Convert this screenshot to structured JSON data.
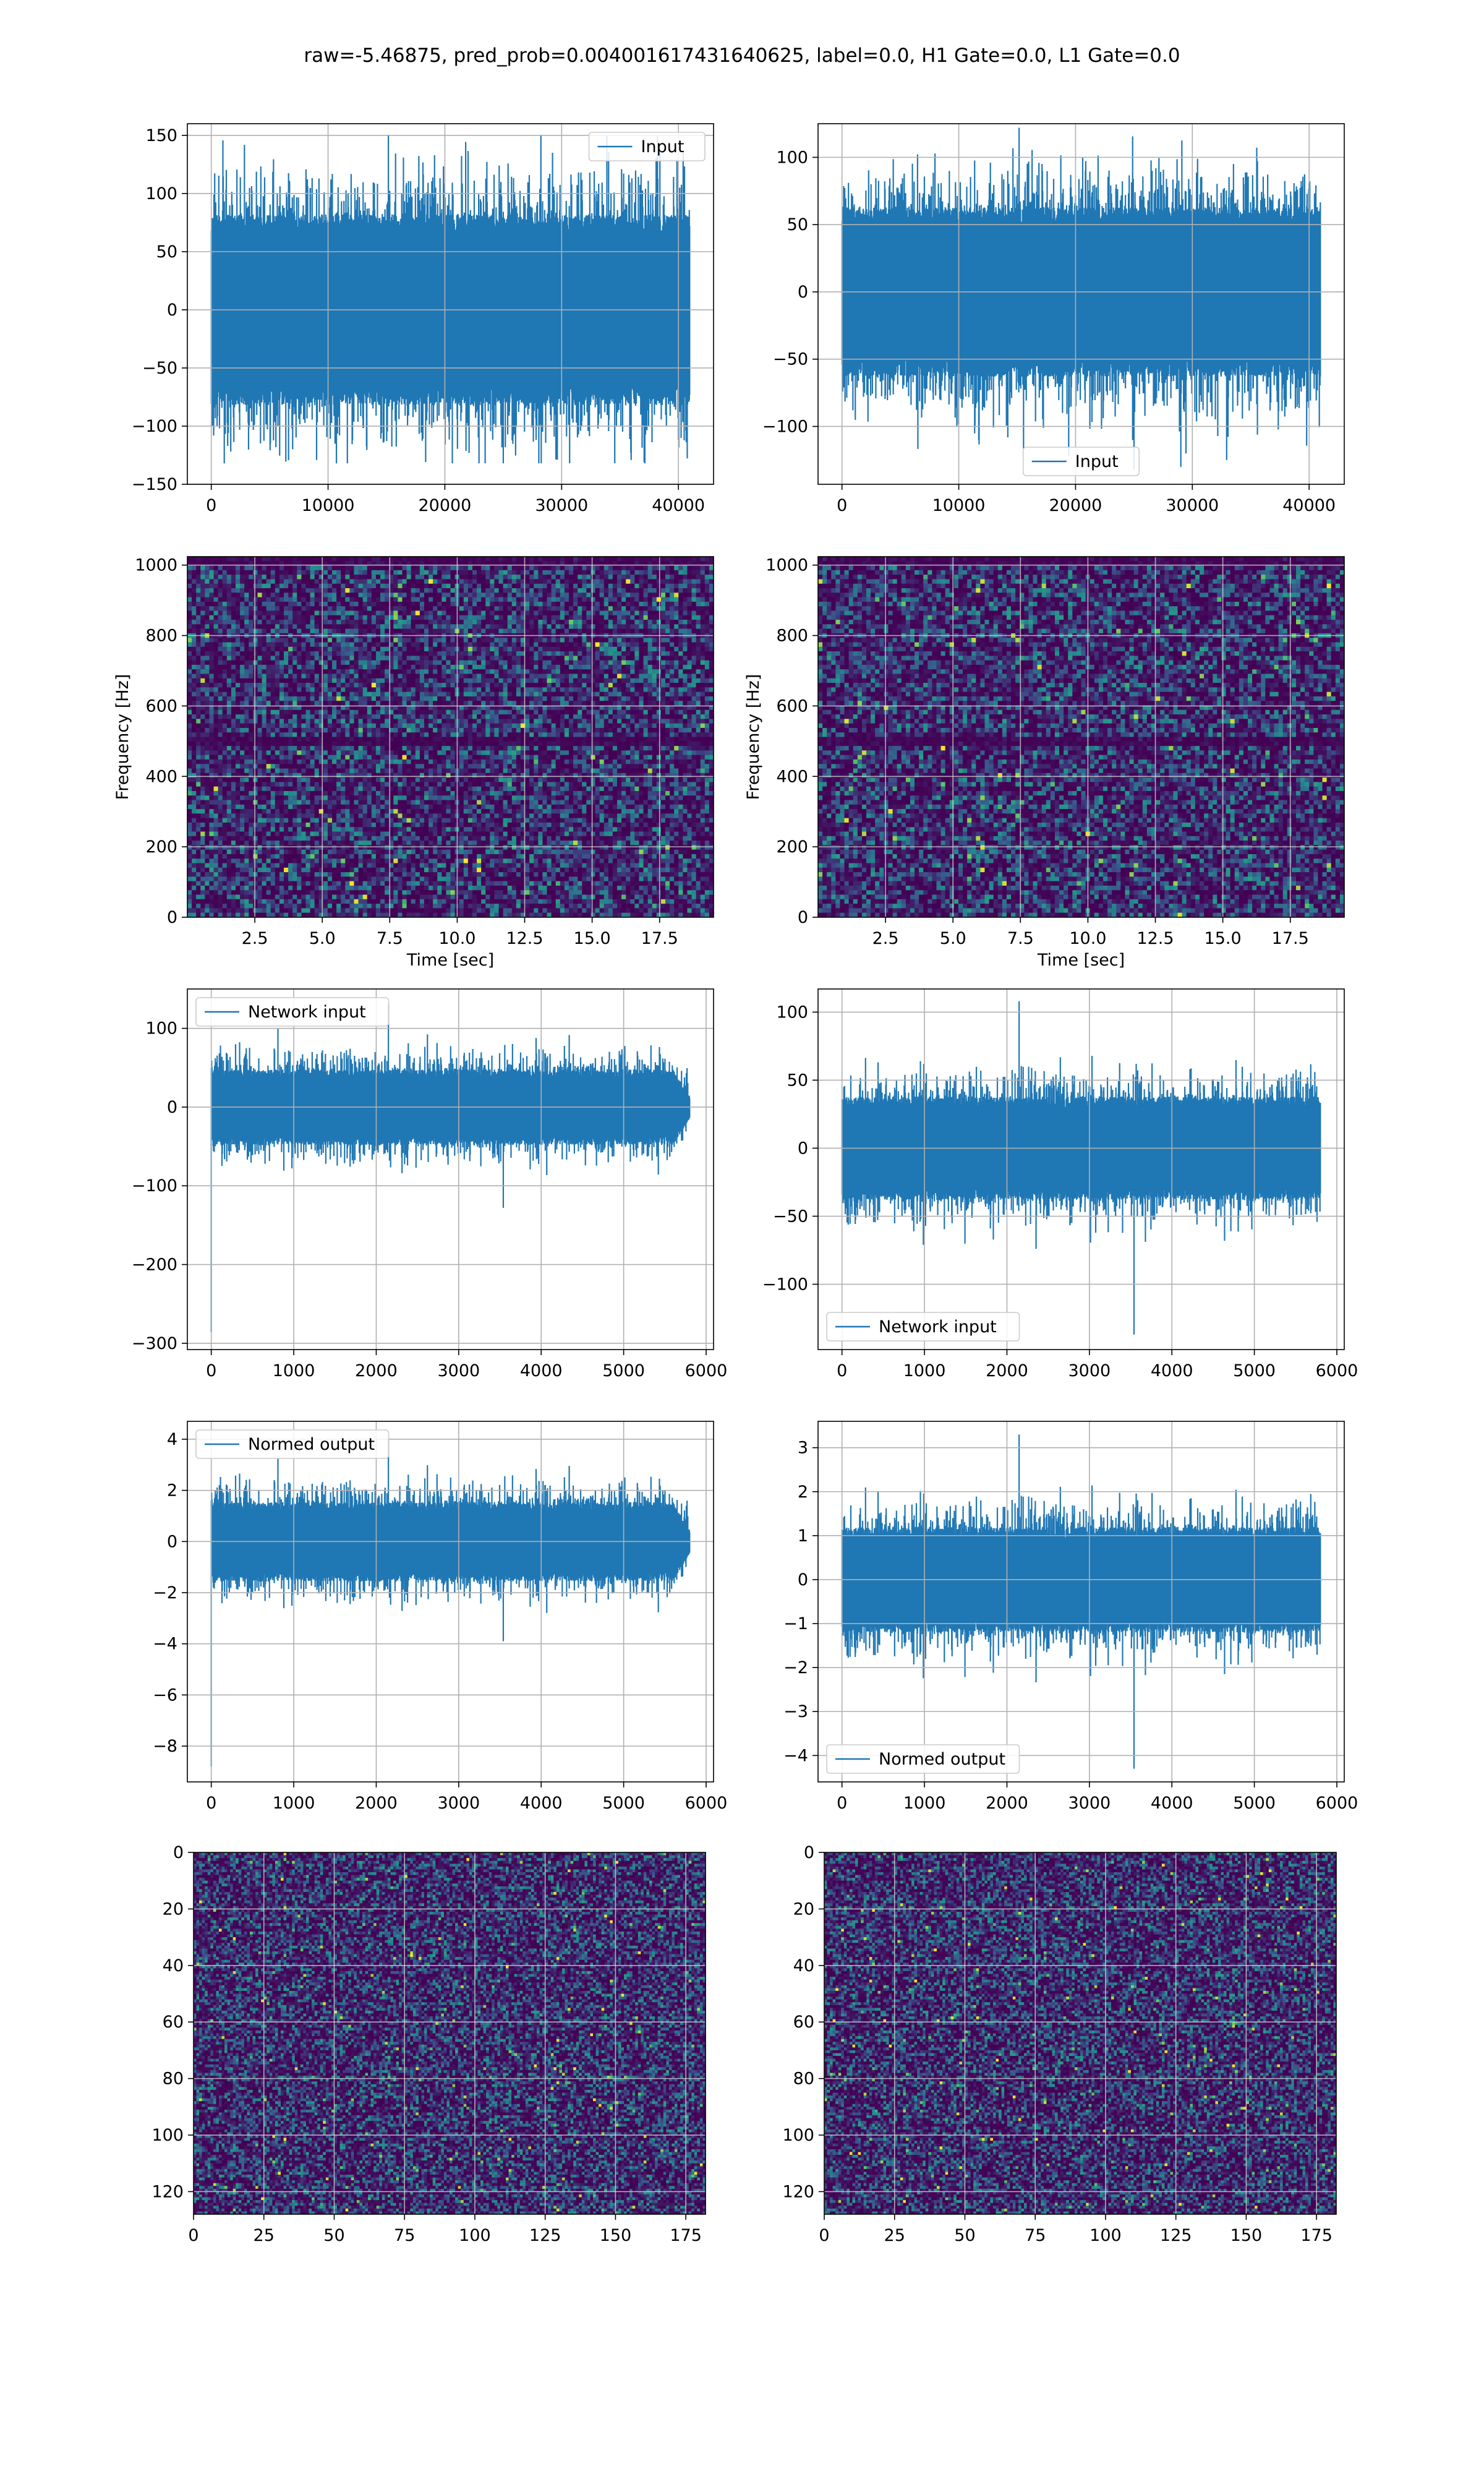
{
  "suptitle": "raw=-5.46875, pred_prob=0.004001617431640625, label=0.0, H1 Gate=0.0, L1 Gate=0.0",
  "colors": {
    "line": "#1f77b4",
    "grid": "#b0b0b0",
    "viridis": [
      "#440154",
      "#3b528b",
      "#21918c",
      "#5ec962",
      "#fde725"
    ]
  },
  "chart_data": [
    {
      "type": "line",
      "name": "row1-left",
      "legend": "Input",
      "legend_loc": "upper right",
      "xlim": [
        -2048,
        43008
      ],
      "ylim": [
        -150,
        160
      ],
      "xticks": [
        0,
        10000,
        20000,
        30000,
        40000
      ],
      "xtick_labels": [
        "0",
        "10000",
        "20000",
        "30000",
        "40000"
      ],
      "yticks": [
        -150,
        -100,
        -50,
        0,
        50,
        100,
        150
      ],
      "ytick_labels": [
        "−150",
        "−100",
        "−50",
        "0",
        "50",
        "100",
        "150"
      ],
      "x_range": [
        0,
        40960
      ],
      "n_points": 1400,
      "core": 82,
      "peak_max": 150,
      "peak_min": -132,
      "seed": 11,
      "xlabel": "",
      "ylabel": "",
      "grid": true
    },
    {
      "type": "line",
      "name": "row1-right",
      "legend": "Input",
      "legend_loc": "lower center",
      "xlim": [
        -2048,
        43008
      ],
      "ylim": [
        -143,
        125
      ],
      "xticks": [
        0,
        10000,
        20000,
        30000,
        40000
      ],
      "xtick_labels": [
        "0",
        "10000",
        "20000",
        "30000",
        "40000"
      ],
      "yticks": [
        -100,
        -50,
        0,
        50,
        100
      ],
      "ytick_labels": [
        "−100",
        "−50",
        "0",
        "50",
        "100"
      ],
      "x_range": [
        0,
        40960
      ],
      "n_points": 1400,
      "core": 63,
      "peak_max": 122,
      "peak_min": -132,
      "seed": 23,
      "xlabel": "",
      "ylabel": "",
      "grid": true
    },
    {
      "type": "heatmap",
      "name": "row2-left",
      "xlim": [
        0,
        19.5
      ],
      "ylim": [
        0,
        1024
      ],
      "xticks": [
        2.5,
        5.0,
        7.5,
        10.0,
        12.5,
        15.0,
        17.5
      ],
      "xtick_labels": [
        "2.5",
        "5.0",
        "7.5",
        "10.0",
        "12.5",
        "15.0",
        "17.5"
      ],
      "yticks": [
        0,
        200,
        400,
        600,
        800,
        1000
      ],
      "ytick_labels": [
        "0",
        "200",
        "400",
        "600",
        "800",
        "1000"
      ],
      "xlabel": "Time [sec]",
      "ylabel": "Frequency [Hz]",
      "cols": 120,
      "rows": 80,
      "seed": 5,
      "dark_bands": [
        500,
        1012
      ],
      "grid": true
    },
    {
      "type": "heatmap",
      "name": "row2-right",
      "xlim": [
        0,
        19.5
      ],
      "ylim": [
        0,
        1024
      ],
      "xticks": [
        2.5,
        5.0,
        7.5,
        10.0,
        12.5,
        15.0,
        17.5
      ],
      "xtick_labels": [
        "2.5",
        "5.0",
        "7.5",
        "10.0",
        "12.5",
        "15.0",
        "17.5"
      ],
      "yticks": [
        0,
        200,
        400,
        600,
        800,
        1000
      ],
      "ytick_labels": [
        "0",
        "200",
        "400",
        "600",
        "800",
        "1000"
      ],
      "xlabel": "Time [sec]",
      "ylabel": "Frequency [Hz]",
      "cols": 120,
      "rows": 80,
      "seed": 9,
      "dark_bands": [
        500,
        1012
      ],
      "grid": true
    },
    {
      "type": "line",
      "name": "row3-left",
      "legend": "Network input",
      "legend_loc": "upper left",
      "xlim": [
        -290,
        6090
      ],
      "ylim": [
        -308,
        150
      ],
      "xticks": [
        0,
        1000,
        2000,
        3000,
        4000,
        5000,
        6000
      ],
      "xtick_labels": [
        "0",
        "1000",
        "2000",
        "3000",
        "4000",
        "5000",
        "6000"
      ],
      "yticks": [
        -300,
        -200,
        -100,
        0,
        100
      ],
      "ytick_labels": [
        "−300",
        "−200",
        "−100",
        "0",
        "100"
      ],
      "x_range": [
        0,
        5800
      ],
      "n_points": 1300,
      "core": 48,
      "peak_max": 130,
      "peak_min": -128,
      "spike_start": -286,
      "taper_start": 5600,
      "seed": 31,
      "xlabel": "",
      "ylabel": "",
      "grid": true
    },
    {
      "type": "line",
      "name": "row3-right",
      "legend": "Network input",
      "legend_loc": "lower left",
      "xlim": [
        -290,
        6090
      ],
      "ylim": [
        -148,
        117
      ],
      "xticks": [
        0,
        1000,
        2000,
        3000,
        4000,
        5000,
        6000
      ],
      "xtick_labels": [
        "0",
        "1000",
        "2000",
        "3000",
        "4000",
        "5000",
        "6000"
      ],
      "yticks": [
        -100,
        -50,
        0,
        50,
        100
      ],
      "ytick_labels": [
        "−100",
        "−50",
        "0",
        "50",
        "100"
      ],
      "x_range": [
        0,
        5800
      ],
      "n_points": 1300,
      "core": 38,
      "peak_max": 108,
      "peak_min": -137,
      "seed": 47,
      "xlabel": "",
      "ylabel": "",
      "grid": true
    },
    {
      "type": "line",
      "name": "row4-left",
      "legend": "Normed output",
      "legend_loc": "upper left",
      "xlim": [
        -290,
        6090
      ],
      "ylim": [
        -9.4,
        4.7
      ],
      "xticks": [
        0,
        1000,
        2000,
        3000,
        4000,
        5000,
        6000
      ],
      "xtick_labels": [
        "0",
        "1000",
        "2000",
        "3000",
        "4000",
        "5000",
        "6000"
      ],
      "yticks": [
        -8,
        -6,
        -4,
        -2,
        0,
        2,
        4
      ],
      "ytick_labels": [
        "−8",
        "−6",
        "−4",
        "−2",
        "0",
        "2",
        "4"
      ],
      "x_range": [
        0,
        5800
      ],
      "n_points": 1300,
      "core": 1.55,
      "peak_max": 4.0,
      "peak_min": -3.9,
      "spike_start": -8.8,
      "taper_start": 5600,
      "seed": 31,
      "xlabel": "",
      "ylabel": "",
      "grid": true
    },
    {
      "type": "line",
      "name": "row4-right",
      "legend": "Normed output",
      "legend_loc": "lower left",
      "xlim": [
        -290,
        6090
      ],
      "ylim": [
        -4.6,
        3.6
      ],
      "xticks": [
        0,
        1000,
        2000,
        3000,
        4000,
        5000,
        6000
      ],
      "xtick_labels": [
        "0",
        "1000",
        "2000",
        "3000",
        "4000",
        "5000",
        "6000"
      ],
      "yticks": [
        -4,
        -3,
        -2,
        -1,
        0,
        1,
        2,
        3
      ],
      "ytick_labels": [
        "−4",
        "−3",
        "−2",
        "−1",
        "0",
        "1",
        "2",
        "3"
      ],
      "x_range": [
        0,
        5800
      ],
      "n_points": 1300,
      "core": 1.2,
      "peak_max": 3.3,
      "peak_min": -4.3,
      "seed": 47,
      "xlabel": "",
      "ylabel": "",
      "grid": true
    },
    {
      "type": "heatmap",
      "name": "row5-left",
      "xlim": [
        0,
        182
      ],
      "ylim": [
        128,
        0
      ],
      "xticks": [
        0,
        25,
        50,
        75,
        100,
        125,
        150,
        175
      ],
      "xtick_labels": [
        "0",
        "25",
        "50",
        "75",
        "100",
        "125",
        "150",
        "175"
      ],
      "yticks": [
        0,
        20,
        40,
        60,
        80,
        100,
        120
      ],
      "ytick_labels": [
        "0",
        "20",
        "40",
        "60",
        "80",
        "100",
        "120"
      ],
      "xlabel": "",
      "ylabel": "",
      "cols": 182,
      "rows": 128,
      "seed": 71,
      "grid": true
    },
    {
      "type": "heatmap",
      "name": "row5-right",
      "xlim": [
        0,
        182
      ],
      "ylim": [
        128,
        0
      ],
      "xticks": [
        0,
        25,
        50,
        75,
        100,
        125,
        150,
        175
      ],
      "xtick_labels": [
        "0",
        "25",
        "50",
        "75",
        "100",
        "125",
        "150",
        "175"
      ],
      "yticks": [
        0,
        20,
        40,
        60,
        80,
        100,
        120
      ],
      "ytick_labels": [
        "0",
        "20",
        "40",
        "60",
        "80",
        "100",
        "120"
      ],
      "xlabel": "",
      "ylabel": "",
      "cols": 182,
      "rows": 128,
      "seed": 83,
      "grid": true
    }
  ]
}
